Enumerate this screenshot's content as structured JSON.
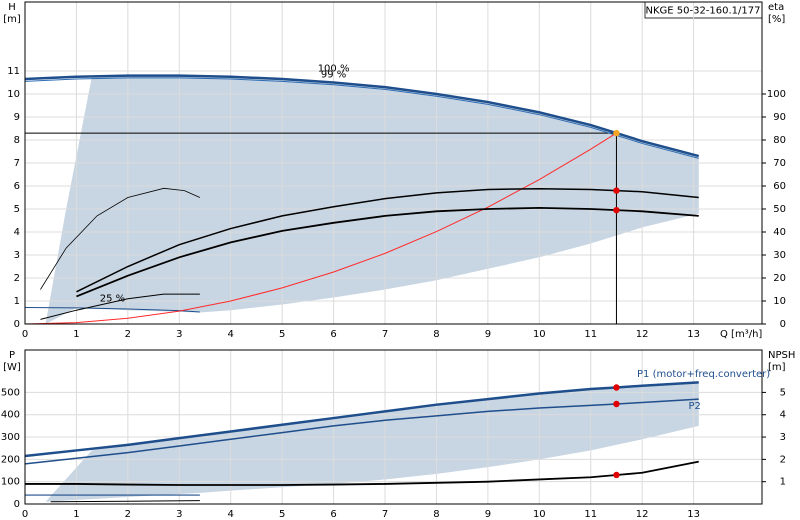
{
  "chart_data": [
    {
      "type": "line",
      "title": "NKGE 50-32-160.1/177",
      "ylabel": "H",
      "yunit": "[m]",
      "y2label": "eta",
      "y2unit": "[%]",
      "xlabel": "Q [m³/h]",
      "xlim": [
        0,
        14.33
      ],
      "ylim": [
        0,
        14
      ],
      "y2lim": [
        0,
        140
      ],
      "grid": true,
      "xticks": [
        0,
        1,
        2,
        3,
        4,
        5,
        6,
        7,
        8,
        9,
        10,
        11,
        12,
        13
      ],
      "yticks": [
        0,
        1,
        2,
        3,
        4,
        5,
        6,
        7,
        8,
        9,
        10,
        11
      ],
      "y2ticks": [
        0,
        10,
        20,
        30,
        40,
        50,
        60,
        70,
        80,
        90,
        100
      ],
      "range_area": {
        "color": "#c8d5e2",
        "x": [
          0.4,
          0.8,
          1.3,
          2,
          3,
          4,
          5,
          6,
          7,
          8,
          9,
          10,
          11,
          12,
          13.1,
          13.1,
          12,
          11,
          10,
          9,
          8,
          7,
          6,
          5,
          4,
          3.4,
          2,
          1
        ],
        "values": [
          0,
          5,
          10.75,
          10.8,
          10.8,
          10.75,
          10.65,
          10.5,
          10.3,
          10.0,
          9.65,
          9.2,
          8.65,
          7.95,
          7.3,
          4.8,
          4.2,
          3.5,
          2.9,
          2.4,
          1.9,
          1.5,
          1.15,
          0.85,
          0.6,
          0.5,
          0.6,
          0.7
        ]
      },
      "duty_point": {
        "x": 11.5,
        "y": 8.3
      },
      "series": [
        {
          "name": "100 %",
          "color": "#1f4e8c",
          "width": 2.5,
          "x": [
            0,
            1,
            2,
            3,
            4,
            5,
            6,
            7,
            8,
            9,
            10,
            11,
            11.5,
            12,
            13.1
          ],
          "values": [
            10.65,
            10.75,
            10.8,
            10.8,
            10.75,
            10.65,
            10.5,
            10.3,
            10.0,
            9.65,
            9.2,
            8.65,
            8.3,
            7.95,
            7.3
          ]
        },
        {
          "name": "99 %",
          "color": "#2e6db4",
          "width": 1,
          "x": [
            0,
            1,
            2,
            3,
            4,
            5,
            6,
            7,
            8,
            9,
            10,
            11,
            11.5,
            12,
            13.1
          ],
          "values": [
            10.55,
            10.65,
            10.7,
            10.7,
            10.65,
            10.55,
            10.4,
            10.2,
            9.9,
            9.55,
            9.1,
            8.55,
            8.2,
            7.85,
            7.2
          ]
        },
        {
          "name": "25 %",
          "color": "#1f4e8c",
          "width": 1,
          "x": [
            0,
            1,
            2,
            3,
            3.4
          ],
          "values": [
            0.72,
            0.7,
            0.65,
            0.58,
            0.52
          ]
        },
        {
          "color": "#ff2a2a",
          "width": 1,
          "x": [
            0,
            1,
            2,
            3,
            4,
            5,
            6,
            7,
            8,
            9,
            10,
            11,
            11.5
          ],
          "values": [
            0,
            0.06,
            0.25,
            0.56,
            1.0,
            1.57,
            2.26,
            3.07,
            4.02,
            5.08,
            6.28,
            7.6,
            8.3
          ]
        },
        {
          "color": "#000000",
          "width": 1.8,
          "axis": "y2",
          "x": [
            1,
            2,
            3,
            4,
            5,
            6,
            7,
            8,
            9,
            10,
            11,
            11.5,
            12,
            13.1
          ],
          "values": [
            12,
            21,
            29,
            35.5,
            40.5,
            44,
            47,
            49,
            50,
            50.5,
            50,
            49.5,
            49,
            47
          ]
        },
        {
          "color": "#000000",
          "width": 1.5,
          "axis": "y2",
          "x": [
            1,
            2,
            3,
            4,
            5,
            6,
            7,
            8,
            9,
            10,
            11,
            11.5,
            12,
            13.1
          ],
          "values": [
            14,
            25,
            34.5,
            41.5,
            47,
            51,
            54.5,
            57,
            58.5,
            58.8,
            58.5,
            58,
            57.5,
            55
          ]
        },
        {
          "color": "#000000",
          "width": 0.8,
          "x": [
            0.3,
            0.8,
            1.4,
            2.0,
            2.7,
            3.1,
            3.4
          ],
          "values": [
            1.5,
            3.3,
            4.7,
            5.5,
            5.9,
            5.8,
            5.5
          ]
        },
        {
          "color": "#000000",
          "width": 1,
          "x": [
            0.3,
            1,
            2,
            2.7,
            3.4
          ],
          "values": [
            0.2,
            0.6,
            1.1,
            1.3,
            1.3
          ]
        }
      ],
      "points": [
        {
          "x": 11.5,
          "y": 8.3,
          "color": "#f5a623"
        },
        {
          "x": 11.5,
          "y": 58,
          "color": "#e00000",
          "axis": "y2"
        },
        {
          "x": 11.5,
          "y": 49.5,
          "color": "#e00000",
          "axis": "y2"
        }
      ]
    },
    {
      "type": "line",
      "ylabel": "P",
      "yunit": "[W]",
      "y2label": "NPSH",
      "y2unit": "[m]",
      "xlim": [
        0,
        14.33
      ],
      "ylim": [
        0,
        690
      ],
      "y2lim": [
        0,
        6.9
      ],
      "grid": true,
      "xticks": [
        0,
        1,
        2,
        3,
        4,
        5,
        6,
        7,
        8,
        9,
        10,
        11,
        12,
        13
      ],
      "yticks": [
        0,
        100,
        200,
        300,
        400,
        500
      ],
      "y2ticks": [
        1,
        2,
        3,
        4,
        5
      ],
      "range_area": {
        "color": "#c8d5e2",
        "x": [
          0.4,
          1.3,
          2,
          3,
          4,
          5,
          6,
          7,
          8,
          9,
          10,
          11,
          12,
          13.1,
          13.1,
          12,
          11,
          10,
          9,
          8,
          7,
          6,
          5,
          4,
          3.4
        ],
        "values": [
          10,
          240,
          265,
          295,
          325,
          355,
          385,
          415,
          445,
          470,
          495,
          515,
          530,
          545,
          350,
          290,
          240,
          200,
          165,
          135,
          110,
          90,
          75,
          60,
          50
        ]
      },
      "series": [
        {
          "name": "P1 (motor+freq.converter)",
          "color": "#1f4e8c",
          "width": 2.5,
          "x": [
            0,
            1,
            2,
            3,
            4,
            5,
            6,
            7,
            8,
            9,
            10,
            11,
            11.5,
            12,
            13.1
          ],
          "values": [
            215,
            240,
            265,
            295,
            325,
            355,
            385,
            415,
            445,
            470,
            495,
            515,
            522,
            530,
            545
          ]
        },
        {
          "name": "P2",
          "color": "#1f4e8c",
          "width": 1.5,
          "x": [
            0,
            1,
            2,
            3,
            4,
            5,
            6,
            7,
            8,
            9,
            10,
            11,
            11.5,
            12,
            13.1
          ],
          "values": [
            180,
            205,
            230,
            260,
            290,
            320,
            350,
            375,
            395,
            415,
            430,
            442,
            448,
            455,
            470
          ]
        },
        {
          "color": "#1f4e8c",
          "width": 1.2,
          "x": [
            0,
            3.4
          ],
          "values": [
            40,
            40
          ]
        },
        {
          "color": "#000000",
          "width": 1.8,
          "axis": "y2",
          "x": [
            0,
            1,
            2,
            3,
            4,
            5,
            6,
            7,
            8,
            9,
            10,
            11,
            11.5,
            12,
            13.1
          ],
          "values": [
            0.9,
            0.9,
            0.87,
            0.85,
            0.85,
            0.85,
            0.87,
            0.9,
            0.95,
            1.0,
            1.1,
            1.2,
            1.3,
            1.4,
            1.9
          ]
        },
        {
          "color": "#000000",
          "width": 1,
          "axis": "y2",
          "x": [
            0.5,
            3.4
          ],
          "values": [
            0.1,
            0.15
          ]
        }
      ],
      "points": [
        {
          "x": 11.5,
          "y": 522,
          "color": "#e00000"
        },
        {
          "x": 11.5,
          "y": 448,
          "color": "#e00000"
        },
        {
          "x": 11.5,
          "y": 1.3,
          "color": "#e00000",
          "axis": "y2"
        }
      ]
    }
  ]
}
